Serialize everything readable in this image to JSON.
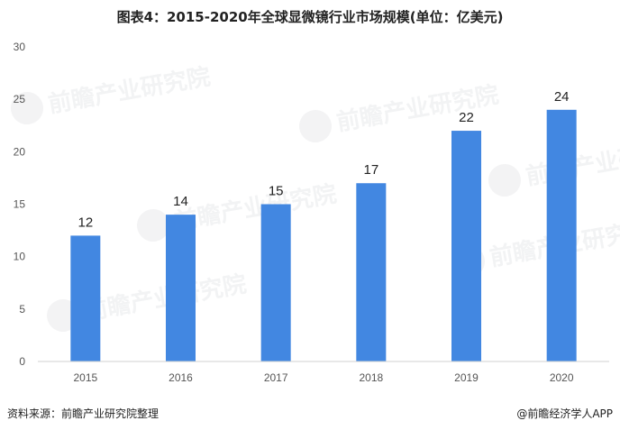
{
  "header": {
    "title": "图表4：2015-2020年全球显微镜行业市场规模(单位：亿美元)"
  },
  "footer": {
    "source": "资料来源：前瞻产业研究院整理",
    "credit": "@前瞻经济学人APP"
  },
  "watermark": {
    "text": "前瞻产业研究院"
  },
  "chart_data": {
    "type": "bar",
    "title": "图表4：2015-2020年全球显微镜行业市场规模(单位：亿美元)",
    "categories": [
      "2015",
      "2016",
      "2017",
      "2018",
      "2019",
      "2020"
    ],
    "values": [
      12,
      14,
      15,
      17,
      22,
      24
    ],
    "data_labels": [
      "12",
      "14",
      "15",
      "17",
      "22",
      "24"
    ],
    "y_ticks": [
      0,
      5,
      10,
      15,
      20,
      25,
      30
    ],
    "ylim": [
      0,
      30
    ],
    "xlabel": "",
    "ylabel": "",
    "grid": false,
    "legend": "none",
    "bar_color": "#4287e1"
  }
}
